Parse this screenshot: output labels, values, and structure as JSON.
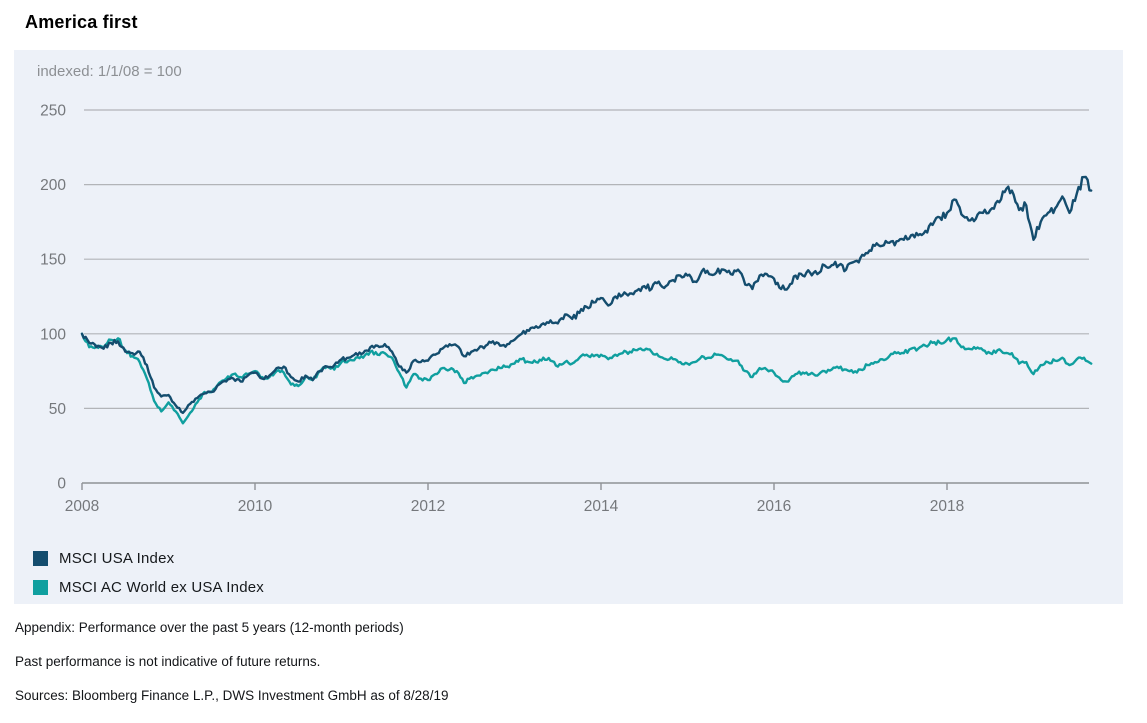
{
  "title": "America first",
  "chart_data": {
    "type": "line",
    "title": "America first",
    "subtitle": "indexed: 1/1/08 = 100",
    "background": "#edf1f8",
    "grid": "horizontal",
    "legend_position": "bottom-left",
    "xlim": [
      2008,
      2019.75
    ],
    "ylim": [
      0,
      250
    ],
    "y_ticks": [
      0,
      50,
      100,
      150,
      200,
      250
    ],
    "x_ticks": [
      2008,
      2010,
      2012,
      2014,
      2016,
      2018
    ],
    "x_start": 2008.0,
    "x_step_years": 0.08333,
    "x_end": 2019.667,
    "series": [
      {
        "name": "MSCI USA Index",
        "color": "#144d6e",
        "values": [
          100,
          94,
          91,
          90,
          94,
          95,
          88,
          87,
          88,
          79,
          64,
          58,
          59,
          52,
          47,
          53,
          57,
          60,
          61,
          66,
          68,
          70,
          68,
          72,
          74,
          70,
          72,
          77,
          78,
          71,
          68,
          72,
          69,
          75,
          78,
          79,
          83,
          84,
          87,
          87,
          91,
          92,
          93,
          88,
          78,
          74,
          82,
          81,
          82,
          86,
          90,
          93,
          92,
          85,
          88,
          90,
          92,
          95,
          92,
          93,
          96,
          100,
          102,
          105,
          107,
          109,
          107,
          113,
          110,
          114,
          118,
          121,
          124,
          119,
          125,
          126,
          127,
          129,
          132,
          130,
          135,
          132,
          136,
          139,
          139,
          135,
          142,
          140,
          141,
          143,
          140,
          143,
          133,
          130,
          139,
          140,
          137,
          130,
          131,
          139,
          139,
          141,
          140,
          146,
          146,
          146,
          143,
          148,
          151,
          154,
          159,
          159,
          161,
          162,
          163,
          166,
          166,
          169,
          173,
          178,
          181,
          190,
          180,
          176,
          177,
          181,
          183,
          189,
          195,
          196,
          183,
          186,
          163,
          175,
          181,
          184,
          192,
          181,
          194,
          205,
          196
        ]
      },
      {
        "name": "MSCI AC World ex USA Index",
        "color": "#109f9f",
        "values": [
          100,
          91,
          92,
          91,
          96,
          97,
          89,
          85,
          81,
          70,
          55,
          48,
          54,
          48,
          40,
          47,
          54,
          61,
          61,
          67,
          70,
          73,
          71,
          73,
          75,
          71,
          71,
          75,
          74,
          66,
          65,
          71,
          69,
          75,
          78,
          76,
          81,
          82,
          84,
          84,
          88,
          86,
          87,
          84,
          74,
          64,
          73,
          70,
          69,
          73,
          77,
          76,
          75,
          67,
          71,
          72,
          74,
          76,
          77,
          78,
          80,
          83,
          81,
          81,
          84,
          82,
          78,
          81,
          80,
          84,
          86,
          85,
          86,
          83,
          86,
          87,
          88,
          89,
          89,
          88,
          85,
          83,
          83,
          81,
          80,
          81,
          85,
          84,
          86,
          85,
          83,
          82,
          75,
          71,
          77,
          76,
          74,
          69,
          68,
          73,
          74,
          73,
          72,
          75,
          76,
          77,
          76,
          74,
          76,
          79,
          81,
          83,
          85,
          87,
          87,
          90,
          90,
          92,
          94,
          94,
          96,
          97,
          91,
          90,
          90,
          89,
          87,
          89,
          87,
          87,
          80,
          81,
          73,
          79,
          81,
          82,
          84,
          79,
          83,
          84,
          80
        ]
      }
    ]
  },
  "footer": {
    "line1": "Appendix: Performance over the past 5 years (12-month periods)",
    "line2": "Past performance is not indicative of future returns.",
    "line3": "Sources: Bloomberg Finance L.P., DWS Investment GmbH as of 8/28/19"
  }
}
